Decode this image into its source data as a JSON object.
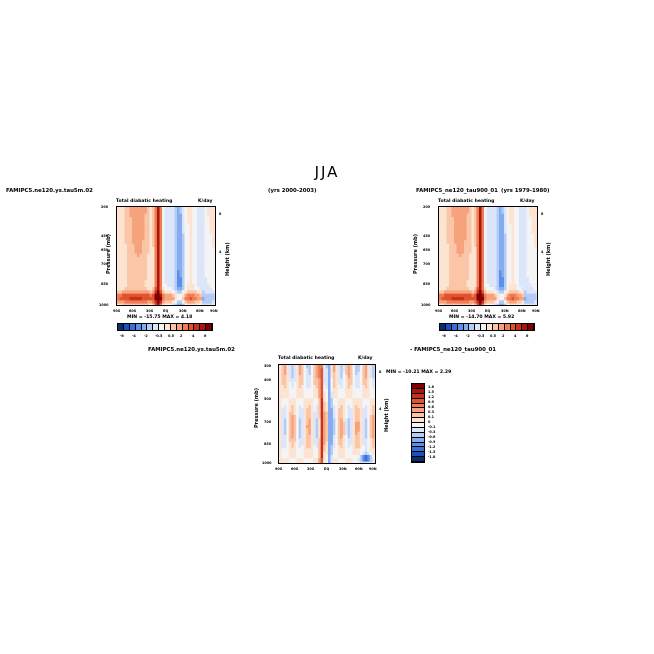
{
  "page": {
    "title": "JJA"
  },
  "palette": {
    "diverging": [
      "#08306b",
      "#1f4fb8",
      "#3a6fd8",
      "#5b8fe8",
      "#86acf0",
      "#b3cbf5",
      "#dbe6fb",
      "#f4f4f4",
      "#fde3d2",
      "#fbc6a8",
      "#f6a37d",
      "#ef7c52",
      "#e0532f",
      "#c7301b",
      "#a8160e",
      "#800000"
    ]
  },
  "panels": [
    {
      "case_left": "FAMIPC5.ne120.ys.tau5m.02",
      "case_right": "(yrs 2000-2003)",
      "var_label": "Total diabatic heating",
      "units": "K/day",
      "ylabel": "Pressure (mb)",
      "right_label": "Height (km)",
      "stats": "MIN = -15.75   MAX =   4.18",
      "y_ticks": [
        "200",
        "450",
        "650",
        "700",
        "850",
        "1000"
      ],
      "x_ticks": [
        "90S",
        "60S",
        "30S",
        "EQ",
        "30N",
        "60N",
        "90N"
      ],
      "height_ticks": [
        "8",
        "4"
      ],
      "colorbar_labels": [
        "-6",
        "-4",
        "-2",
        "-0.5",
        "0.5",
        "2",
        "4",
        "6"
      ]
    },
    {
      "case_left": "FAMIPC5_ne120_tau900_01",
      "case_right": "(yrs 1979-1980)",
      "var_label": "Total diabatic heating",
      "units": "K/day",
      "ylabel": "Pressure (mb)",
      "right_label": "Height (km)",
      "stats": "MIN = -14.70   MAX =   5.92",
      "y_ticks": [
        "200",
        "450",
        "650",
        "700",
        "850",
        "1000"
      ],
      "x_ticks": [
        "90S",
        "60S",
        "30S",
        "EQ",
        "30N",
        "60N",
        "90N"
      ],
      "height_ticks": [
        "8",
        "4"
      ],
      "colorbar_labels": [
        "-6",
        "-4",
        "-2",
        "-0.5",
        "0.5",
        "2",
        "4",
        "6"
      ]
    },
    {
      "case_left": "FAMIPC5.ne120.ys.tau5m.02",
      "case_right": "- FAMIPC5_ne120_tau900_01",
      "var_label": "Total diabatic heating",
      "units": "K/day",
      "ylabel": "Pressure (mb)",
      "right_label": "Height (km)",
      "stats": "MIN = -10.21   MAX =   2.29",
      "y_ticks": [
        "300",
        "400",
        "500",
        "700",
        "850",
        "1000"
      ],
      "x_ticks": [
        "90S",
        "60S",
        "30S",
        "EQ",
        "30N",
        "60N",
        "90N"
      ],
      "height_ticks": [
        "8",
        "4"
      ],
      "colorbar_labels": [
        "1.8",
        "1.5",
        "1.2",
        "0.9",
        "0.6",
        "0.3",
        "0.1",
        "0",
        "-0.1",
        "-0.3",
        "-0.6",
        "-0.9",
        "-1.2",
        "-1.5",
        "-1.8"
      ]
    }
  ],
  "chart_data": [
    {
      "type": "heatmap",
      "title": "Total diabatic heating",
      "xlabel": "",
      "ylabel": "Pressure (mb)",
      "x": [
        "90S",
        "60S",
        "30S",
        "EQ",
        "30N",
        "60N",
        "90N"
      ],
      "y": [
        200,
        450,
        650,
        700,
        850,
        1000
      ],
      "units": "K/day",
      "min": -15.75,
      "max": 4.18
    },
    {
      "type": "heatmap",
      "title": "Total diabatic heating",
      "xlabel": "",
      "ylabel": "Pressure (mb)",
      "x": [
        "90S",
        "60S",
        "30S",
        "EQ",
        "30N",
        "60N",
        "90N"
      ],
      "y": [
        200,
        450,
        650,
        700,
        850,
        1000
      ],
      "units": "K/day",
      "min": -14.7,
      "max": 5.92
    },
    {
      "type": "heatmap",
      "title": "Total diabatic heating",
      "xlabel": "",
      "ylabel": "Pressure (mb)",
      "x": [
        "90S",
        "60S",
        "30S",
        "EQ",
        "30N",
        "60N",
        "90N"
      ],
      "y": [
        300,
        400,
        500,
        700,
        850,
        1000
      ],
      "units": "K/day",
      "min": -10.21,
      "max": 2.29
    }
  ]
}
